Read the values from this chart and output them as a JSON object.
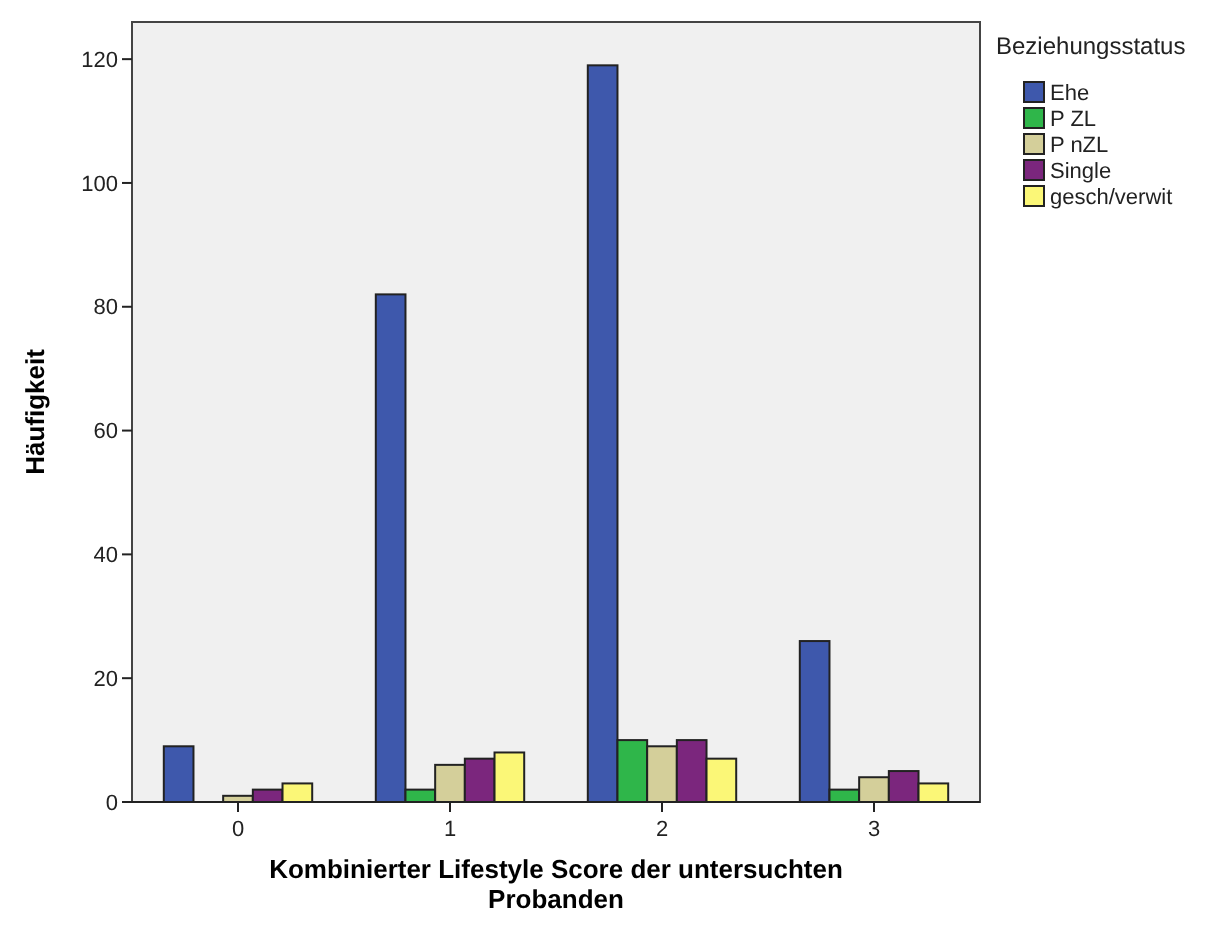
{
  "chart_data": {
    "type": "bar",
    "xlabel": "Kombinierter Lifestyle Score der untersuchten Probanden",
    "ylabel": "Häufigkeit",
    "legend_title": "Beziehungsstatus",
    "legend": "right",
    "grid": false,
    "categories": [
      "0",
      "1",
      "2",
      "3"
    ],
    "ylim": [
      0,
      126
    ],
    "yticks": [
      0,
      20,
      40,
      60,
      80,
      100,
      120
    ],
    "series": [
      {
        "name": "Ehe",
        "color": "#3e58ac",
        "values": [
          9,
          82,
          119,
          26
        ]
      },
      {
        "name": "P ZL",
        "color": "#2fb64a",
        "values": [
          0,
          2,
          10,
          2
        ]
      },
      {
        "name": "P nZL",
        "color": "#d4cf9a",
        "values": [
          1,
          6,
          9,
          4
        ]
      },
      {
        "name": "Single",
        "color": "#7b267d",
        "values": [
          2,
          7,
          10,
          5
        ]
      },
      {
        "name": "gesch/verwit",
        "color": "#fbf777",
        "values": [
          3,
          8,
          7,
          3
        ]
      }
    ]
  }
}
